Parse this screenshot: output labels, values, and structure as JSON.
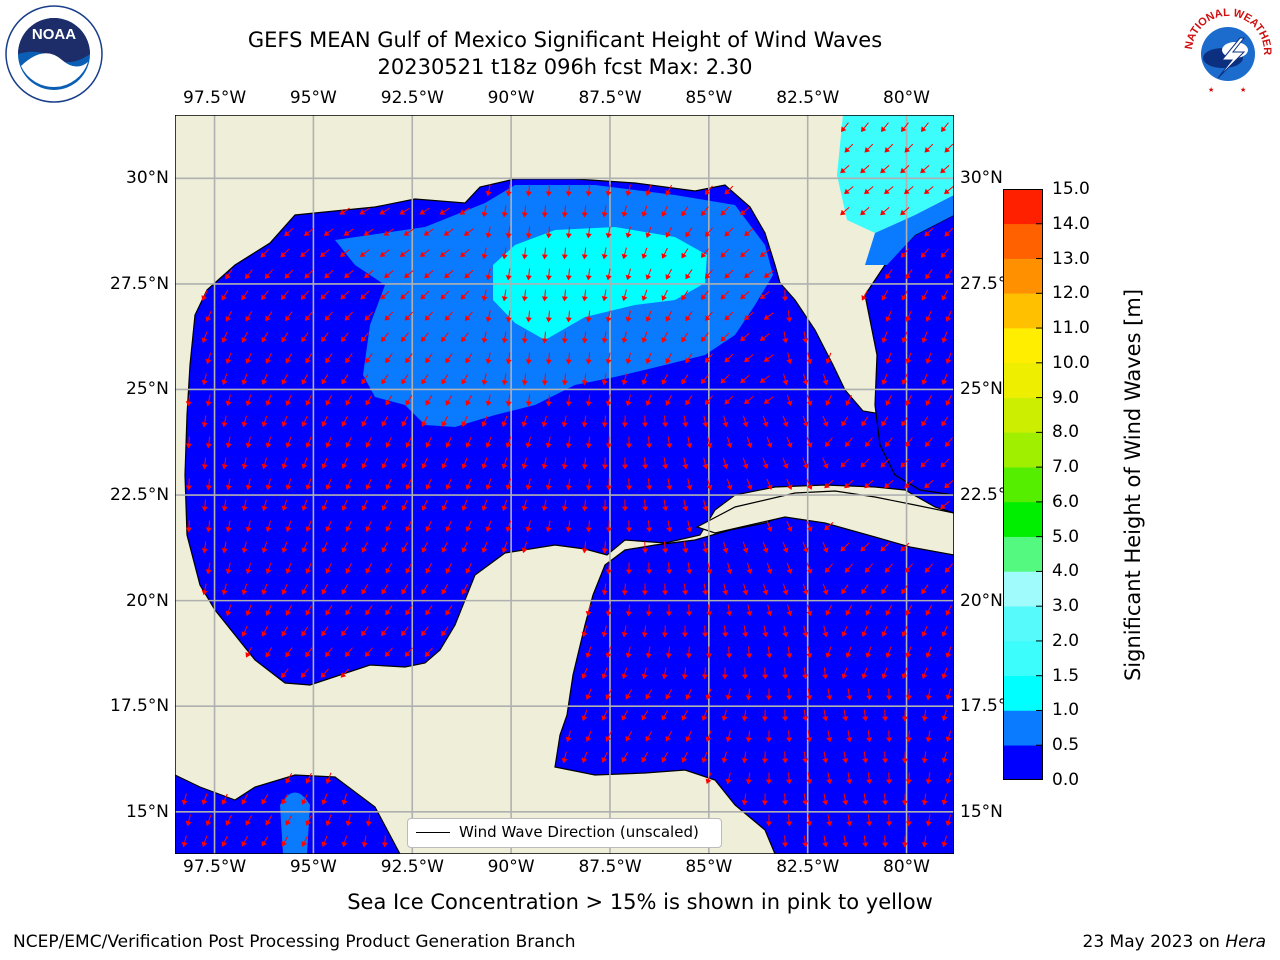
{
  "title_line1": "GEFS MEAN Gulf of Mexico Significant Height of Wind Waves",
  "title_line2": "20230521 t18z 096h fcst   Max: 2.30",
  "lon_ticks": [
    "97.5°W",
    "95°W",
    "92.5°W",
    "90°W",
    "87.5°W",
    "85°W",
    "82.5°W",
    "80°W"
  ],
  "lat_ticks": [
    "30°N",
    "27.5°N",
    "25°N",
    "22.5°N",
    "20°N",
    "17.5°N",
    "15°N"
  ],
  "legend_label": "Wind Wave Direction (unscaled)",
  "sea_ice_note": "Sea Ice Concentration > 15% is shown in pink to yellow",
  "footer_left": "NCEP/EMC/Verification Post Processing Product Generation Branch",
  "footer_date": "23 May 2023 on",
  "footer_machine": "Hera",
  "colorbar": {
    "label": "Significant Height of Wind Waves [m]",
    "ticks": [
      "0.0",
      "0.5",
      "1.0",
      "1.5",
      "2.0",
      "3.0",
      "4.0",
      "5.0",
      "6.0",
      "7.0",
      "8.0",
      "9.0",
      "10.0",
      "11.0",
      "12.0",
      "13.0",
      "14.0",
      "15.0"
    ],
    "colors": [
      "#0000ff",
      "#0a7aff",
      "#00ffff",
      "#3cfcfc",
      "#56fafa",
      "#a0fcfc",
      "#54fa80",
      "#00ee00",
      "#55ee00",
      "#a0ee00",
      "#ccee00",
      "#eeee00",
      "#ffee00",
      "#ffc000",
      "#ff9000",
      "#ff6000",
      "#ff2000"
    ]
  },
  "colors": {
    "land": "#eeeed9",
    "ocean": "#0000ff",
    "arrows": "#ff0000",
    "grid": "#b0b0b0",
    "coast": "#000000"
  },
  "map_extent": {
    "lon_min": -98.5,
    "lon_max": -78.8,
    "lat_min": 14,
    "lat_max": 31.5
  },
  "logos": {
    "left": "NOAA",
    "right": "NATIONAL WEATHER SERVICE"
  }
}
